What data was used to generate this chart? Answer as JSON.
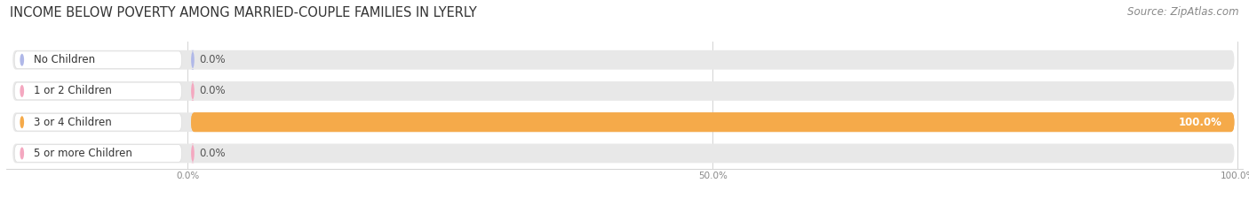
{
  "title": "INCOME BELOW POVERTY AMONG MARRIED-COUPLE FAMILIES IN LYERLY",
  "source": "Source: ZipAtlas.com",
  "categories": [
    "No Children",
    "1 or 2 Children",
    "3 or 4 Children",
    "5 or more Children"
  ],
  "values": [
    0.0,
    0.0,
    100.0,
    0.0
  ],
  "bar_colors": [
    "#b0b8e8",
    "#f4a8c0",
    "#f5aa4a",
    "#f4a8c0"
  ],
  "label_bg_colors": [
    "#b0b8e8",
    "#f4a8c0",
    "#f5aa4a",
    "#f4a8c0"
  ],
  "value_labels": [
    "0.0%",
    "0.0%",
    "100.0%",
    "0.0%"
  ],
  "xticks": [
    0.0,
    50.0,
    100.0
  ],
  "xtick_labels": [
    "0.0%",
    "50.0%",
    "100.0%"
  ],
  "title_fontsize": 10.5,
  "label_fontsize": 8.5,
  "value_fontsize": 8.5,
  "source_fontsize": 8.5
}
